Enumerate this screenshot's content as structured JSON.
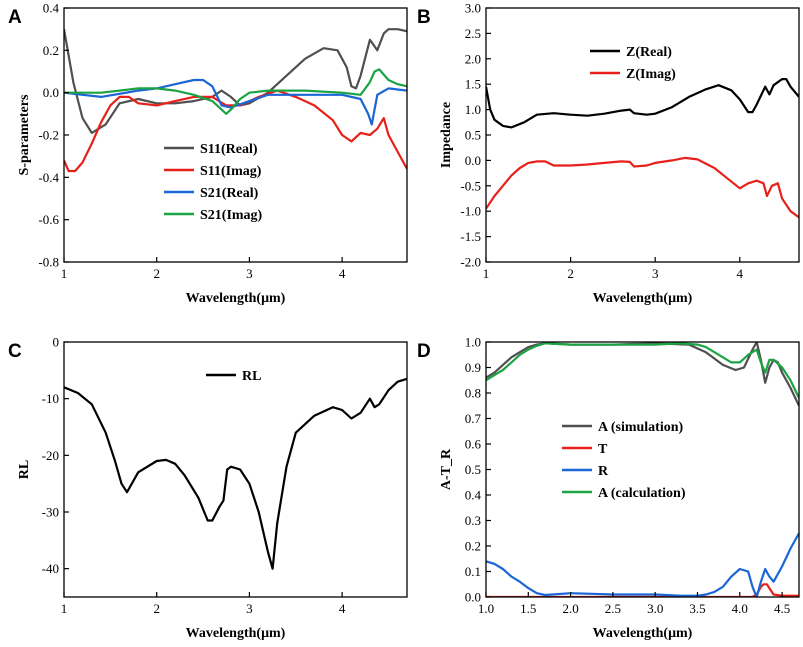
{
  "chart_data": [
    {
      "id": "A",
      "type": "line",
      "panel_label": "A",
      "xlabel": "Wavelength(μm)",
      "ylabel": "S-parameters",
      "xlim": [
        1,
        4.7
      ],
      "ylim": [
        -0.8,
        0.4
      ],
      "xticks": [
        1,
        2,
        3,
        4
      ],
      "yticks": [
        0.4,
        0.2,
        0.0,
        -0.2,
        -0.4,
        -0.6,
        -0.8
      ],
      "ytick_labels": [
        "0.4",
        "0.2",
        "0.0",
        "-0.2",
        "-0.4",
        "-0.6",
        "-0.8"
      ],
      "legend_position": "center",
      "series": [
        {
          "name": "S11(Real)",
          "color": "#505050",
          "x": [
            1.0,
            1.1,
            1.2,
            1.3,
            1.45,
            1.6,
            1.8,
            2.0,
            2.2,
            2.4,
            2.6,
            2.7,
            2.8,
            2.9,
            3.0,
            3.2,
            3.4,
            3.6,
            3.8,
            3.95,
            4.05,
            4.1,
            4.15,
            4.2,
            4.3,
            4.38,
            4.45,
            4.5,
            4.6,
            4.7
          ],
          "y": [
            0.3,
            0.05,
            -0.12,
            -0.19,
            -0.15,
            -0.05,
            -0.03,
            -0.05,
            -0.05,
            -0.04,
            -0.02,
            0.01,
            -0.02,
            -0.06,
            -0.05,
            0.0,
            0.08,
            0.16,
            0.21,
            0.2,
            0.12,
            0.03,
            0.02,
            0.08,
            0.25,
            0.2,
            0.28,
            0.3,
            0.3,
            0.29
          ]
        },
        {
          "name": "S11(Imag)",
          "color": "#e8201a",
          "x": [
            1.0,
            1.05,
            1.12,
            1.2,
            1.3,
            1.4,
            1.5,
            1.6,
            1.7,
            1.8,
            2.0,
            2.2,
            2.4,
            2.6,
            2.75,
            2.9,
            3.1,
            3.3,
            3.5,
            3.7,
            3.9,
            4.0,
            4.1,
            4.2,
            4.3,
            4.38,
            4.45,
            4.5,
            4.6,
            4.7
          ],
          "y": [
            -0.32,
            -0.37,
            -0.37,
            -0.33,
            -0.24,
            -0.14,
            -0.06,
            -0.02,
            -0.02,
            -0.05,
            -0.06,
            -0.04,
            -0.02,
            -0.02,
            -0.06,
            -0.06,
            -0.02,
            0.01,
            -0.02,
            -0.06,
            -0.13,
            -0.2,
            -0.23,
            -0.19,
            -0.2,
            -0.17,
            -0.12,
            -0.2,
            -0.28,
            -0.36
          ]
        },
        {
          "name": "S21(Real)",
          "color": "#1a66d6",
          "x": [
            1.0,
            1.4,
            1.8,
            2.0,
            2.2,
            2.4,
            2.5,
            2.6,
            2.7,
            2.8,
            3.0,
            3.2,
            3.6,
            4.0,
            4.2,
            4.28,
            4.32,
            4.38,
            4.5,
            4.7
          ],
          "y": [
            0.0,
            -0.02,
            0.01,
            0.02,
            0.04,
            0.06,
            0.06,
            0.03,
            -0.06,
            -0.07,
            -0.04,
            -0.01,
            -0.01,
            -0.01,
            -0.03,
            -0.1,
            -0.15,
            -0.01,
            0.02,
            0.01
          ]
        },
        {
          "name": "S21(Imag)",
          "color": "#1ca343",
          "x": [
            1.0,
            1.4,
            1.8,
            2.0,
            2.2,
            2.4,
            2.6,
            2.7,
            2.75,
            2.8,
            2.9,
            3.0,
            3.2,
            3.4,
            3.6,
            4.0,
            4.2,
            4.3,
            4.35,
            4.4,
            4.5,
            4.6,
            4.7
          ],
          "y": [
            0.0,
            0.0,
            0.02,
            0.02,
            0.01,
            -0.01,
            -0.04,
            -0.08,
            -0.1,
            -0.08,
            -0.03,
            0.0,
            0.01,
            0.01,
            0.01,
            0.0,
            -0.01,
            0.05,
            0.1,
            0.11,
            0.06,
            0.04,
            0.03
          ]
        }
      ]
    },
    {
      "id": "B",
      "type": "line",
      "panel_label": "B",
      "xlabel": "Wavelength(μm)",
      "ylabel": "Impedance",
      "xlim": [
        1,
        4.7
      ],
      "ylim": [
        -2.0,
        3.0
      ],
      "xticks": [
        1,
        2,
        3,
        4
      ],
      "yticks": [
        3.0,
        2.5,
        2.0,
        1.5,
        1.0,
        0.5,
        0.0,
        -0.5,
        -1.0,
        -1.5,
        -2.0
      ],
      "ytick_labels": [
        "3.0",
        "2.5",
        "2.0",
        "1.5",
        "1.0",
        "0.5",
        "0.0",
        "-0.5",
        "-1.0",
        "-1.5",
        "-2.0"
      ],
      "legend_position": "top-left",
      "series": [
        {
          "name": "Z(Real)",
          "color": "#000000",
          "x": [
            1.0,
            1.05,
            1.1,
            1.2,
            1.3,
            1.45,
            1.6,
            1.8,
            2.0,
            2.2,
            2.4,
            2.6,
            2.7,
            2.75,
            2.9,
            3.0,
            3.2,
            3.4,
            3.6,
            3.75,
            3.9,
            4.0,
            4.1,
            4.15,
            4.2,
            4.3,
            4.35,
            4.4,
            4.5,
            4.55,
            4.6,
            4.7
          ],
          "y": [
            1.45,
            1.0,
            0.8,
            0.68,
            0.65,
            0.75,
            0.9,
            0.93,
            0.9,
            0.88,
            0.92,
            0.98,
            1.0,
            0.93,
            0.9,
            0.92,
            1.05,
            1.25,
            1.4,
            1.48,
            1.38,
            1.2,
            0.95,
            0.95,
            1.1,
            1.45,
            1.3,
            1.48,
            1.6,
            1.6,
            1.45,
            1.25
          ]
        },
        {
          "name": "Z(Imag)",
          "color": "#e8201a",
          "x": [
            1.0,
            1.1,
            1.2,
            1.3,
            1.4,
            1.5,
            1.6,
            1.7,
            1.8,
            2.0,
            2.2,
            2.4,
            2.6,
            2.7,
            2.75,
            2.9,
            3.0,
            3.2,
            3.35,
            3.5,
            3.7,
            3.85,
            4.0,
            4.1,
            4.2,
            4.28,
            4.32,
            4.38,
            4.45,
            4.5,
            4.6,
            4.7
          ],
          "y": [
            -0.95,
            -0.7,
            -0.5,
            -0.3,
            -0.15,
            -0.05,
            -0.02,
            -0.02,
            -0.1,
            -0.1,
            -0.08,
            -0.05,
            -0.02,
            -0.03,
            -0.12,
            -0.1,
            -0.05,
            0.0,
            0.05,
            0.02,
            -0.15,
            -0.35,
            -0.55,
            -0.45,
            -0.4,
            -0.45,
            -0.7,
            -0.5,
            -0.45,
            -0.75,
            -1.0,
            -1.12
          ]
        }
      ]
    },
    {
      "id": "C",
      "type": "line",
      "panel_label": "C",
      "xlabel": "Wavelength(μm)",
      "ylabel": "RL",
      "xlim": [
        1,
        4.7
      ],
      "ylim": [
        -45,
        0
      ],
      "xticks": [
        1,
        2,
        3,
        4
      ],
      "yticks": [
        0,
        -10,
        -20,
        -30,
        -40
      ],
      "ytick_labels": [
        "0",
        "-10",
        "-20",
        "-30",
        "-40"
      ],
      "legend_position": "top-center",
      "series": [
        {
          "name": "RL",
          "color": "#000000",
          "x": [
            1.0,
            1.15,
            1.3,
            1.45,
            1.55,
            1.62,
            1.68,
            1.8,
            2.0,
            2.1,
            2.2,
            2.3,
            2.45,
            2.55,
            2.6,
            2.68,
            2.72,
            2.76,
            2.8,
            2.9,
            3.0,
            3.1,
            3.2,
            3.25,
            3.3,
            3.4,
            3.5,
            3.7,
            3.9,
            4.0,
            4.1,
            4.2,
            4.3,
            4.35,
            4.4,
            4.5,
            4.6,
            4.7
          ],
          "y": [
            -8,
            -9,
            -11,
            -16,
            -21,
            -25,
            -26.5,
            -23,
            -21,
            -20.8,
            -21.5,
            -23.5,
            -27.5,
            -31.5,
            -31.5,
            -29,
            -28,
            -22.5,
            -22,
            -22.5,
            -25,
            -30,
            -37,
            -40,
            -32,
            -22,
            -16,
            -13,
            -11.5,
            -12,
            -13.5,
            -12.5,
            -10,
            -11.5,
            -11,
            -8.5,
            -7,
            -6.5
          ]
        }
      ]
    },
    {
      "id": "D",
      "type": "line",
      "panel_label": "D",
      "xlabel": "Wavelength(μm)",
      "ylabel": "A-T_R",
      "xlim": [
        1,
        4.7
      ],
      "ylim": [
        0,
        1
      ],
      "xticks": [
        1.0,
        1.5,
        2.0,
        2.5,
        3.0,
        3.5,
        4.0,
        4.5
      ],
      "xtick_labels": [
        "1.0",
        "1.5",
        "2.0",
        "2.5",
        "3.0",
        "3.5",
        "4.0",
        "4.5"
      ],
      "yticks": [
        1.0,
        0.9,
        0.8,
        0.7,
        0.6,
        0.5,
        0.4,
        0.3,
        0.2,
        0.1,
        0.0
      ],
      "ytick_labels": [
        "1.0",
        "0.9",
        "0.8",
        "0.7",
        "0.6",
        "0.5",
        "0.4",
        "0.3",
        "0.2",
        "0.1",
        "0.0"
      ],
      "legend_position": "center-right",
      "series": [
        {
          "name": "A (simulation)",
          "color": "#505050",
          "x": [
            1.0,
            1.1,
            1.2,
            1.3,
            1.4,
            1.5,
            1.6,
            1.7,
            2.0,
            2.5,
            3.0,
            3.4,
            3.6,
            3.8,
            3.95,
            4.05,
            4.15,
            4.2,
            4.25,
            4.3,
            4.35,
            4.4,
            4.45,
            4.5,
            4.6,
            4.7
          ],
          "y": [
            0.86,
            0.88,
            0.91,
            0.94,
            0.96,
            0.98,
            0.99,
            0.995,
            0.99,
            0.99,
            0.995,
            0.99,
            0.96,
            0.91,
            0.89,
            0.9,
            0.97,
            1.0,
            0.93,
            0.84,
            0.9,
            0.93,
            0.92,
            0.88,
            0.82,
            0.75
          ]
        },
        {
          "name": "T",
          "color": "#e8201a",
          "x": [
            1.0,
            1.5,
            2.0,
            2.5,
            3.0,
            3.5,
            4.0,
            4.15,
            4.2,
            4.25,
            4.28,
            4.32,
            4.36,
            4.4,
            4.5,
            4.7
          ],
          "y": [
            0.0,
            0.0,
            0.0,
            0.0,
            0.0,
            0.0,
            0.0,
            0.0,
            0.01,
            0.04,
            0.05,
            0.05,
            0.03,
            0.01,
            0.005,
            0.005
          ]
        },
        {
          "name": "R",
          "color": "#1a66d6",
          "x": [
            1.0,
            1.1,
            1.2,
            1.3,
            1.4,
            1.5,
            1.6,
            1.7,
            2.0,
            2.5,
            3.0,
            3.3,
            3.5,
            3.6,
            3.7,
            3.8,
            3.9,
            4.0,
            4.1,
            4.15,
            4.2,
            4.25,
            4.3,
            4.35,
            4.4,
            4.5,
            4.6,
            4.7
          ],
          "y": [
            0.14,
            0.13,
            0.11,
            0.08,
            0.06,
            0.035,
            0.015,
            0.008,
            0.015,
            0.01,
            0.01,
            0.005,
            0.005,
            0.01,
            0.02,
            0.04,
            0.08,
            0.11,
            0.1,
            0.04,
            0.0,
            0.06,
            0.11,
            0.08,
            0.06,
            0.12,
            0.19,
            0.25
          ]
        },
        {
          "name": "A (calculation)",
          "color": "#1ca343",
          "x": [
            1.0,
            1.1,
            1.2,
            1.3,
            1.4,
            1.5,
            1.6,
            1.7,
            2.0,
            2.5,
            3.0,
            3.3,
            3.5,
            3.6,
            3.7,
            3.8,
            3.9,
            4.0,
            4.1,
            4.2,
            4.25,
            4.3,
            4.35,
            4.4,
            4.5,
            4.6,
            4.7
          ],
          "y": [
            0.85,
            0.87,
            0.89,
            0.92,
            0.95,
            0.97,
            0.985,
            0.995,
            0.99,
            0.99,
            0.99,
            0.995,
            0.99,
            0.98,
            0.96,
            0.94,
            0.92,
            0.92,
            0.95,
            0.97,
            0.92,
            0.88,
            0.93,
            0.93,
            0.9,
            0.85,
            0.78
          ]
        }
      ]
    }
  ]
}
